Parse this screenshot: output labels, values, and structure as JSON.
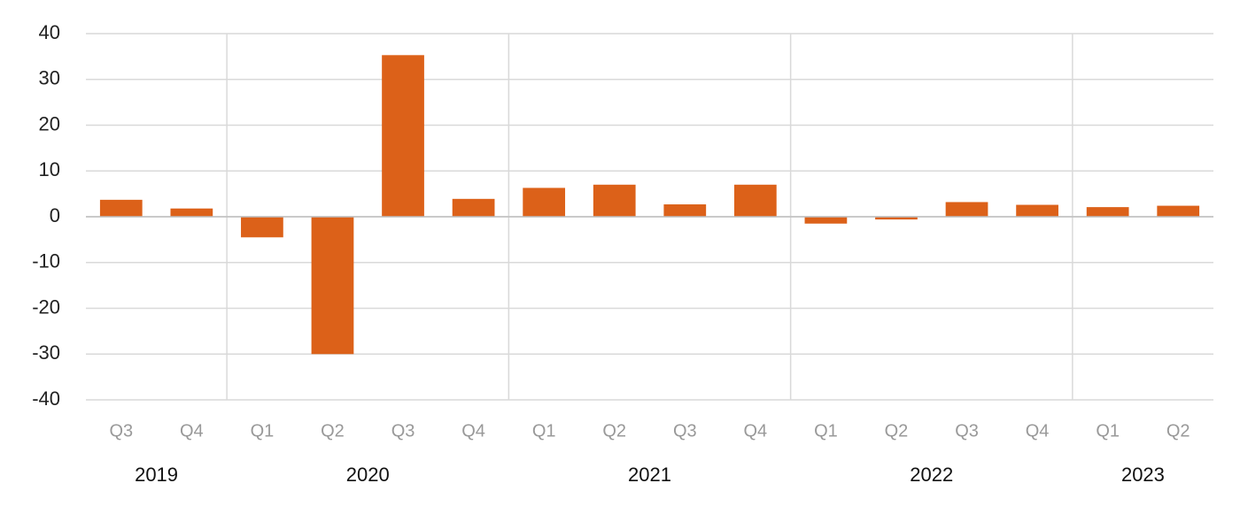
{
  "chart_data": {
    "type": "bar",
    "color": "#dc6119",
    "grid": true,
    "ylim": [
      -40,
      40
    ],
    "yticks": [
      -40,
      -30,
      -20,
      -10,
      0,
      10,
      20,
      30,
      40
    ],
    "groups": [
      {
        "label": "2019",
        "categories": [
          "Q3",
          "Q4"
        ],
        "values": [
          3.7,
          1.8
        ]
      },
      {
        "label": "2020",
        "categories": [
          "Q1",
          "Q2",
          "Q3",
          "Q4"
        ],
        "values": [
          -4.5,
          -30,
          35.3,
          3.9
        ]
      },
      {
        "label": "2021",
        "categories": [
          "Q1",
          "Q2",
          "Q3",
          "Q4"
        ],
        "values": [
          6.3,
          7.0,
          2.7,
          7.0
        ]
      },
      {
        "label": "2022",
        "categories": [
          "Q1",
          "Q2",
          "Q3",
          "Q4"
        ],
        "values": [
          -1.5,
          -0.6,
          3.2,
          2.6
        ]
      },
      {
        "label": "2023",
        "categories": [
          "Q1",
          "Q2"
        ],
        "values": [
          2.1,
          2.4
        ]
      }
    ]
  }
}
